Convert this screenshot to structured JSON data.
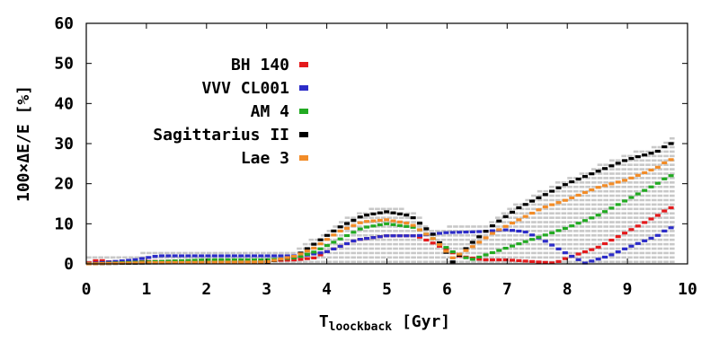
{
  "chart_data": {
    "type": "line",
    "xlabel": "T",
    "xlabel_sub": "loockback",
    "xlabel_unit": " [Gyr]",
    "ylabel": "100×ΔE/E [%]",
    "xlim": [
      0,
      10
    ],
    "ylim": [
      0,
      60
    ],
    "x_ticks": [
      0,
      1,
      2,
      3,
      4,
      5,
      6,
      7,
      8,
      9,
      10
    ],
    "y_ticks": [
      0,
      10,
      20,
      30,
      40,
      50,
      60
    ],
    "grid": false,
    "legend_position": "top-left",
    "background_band_color": "#c8c8c8",
    "series": [
      {
        "name": "BH 140",
        "color": "#e41a1c",
        "points": [
          [
            0.0,
            0
          ],
          [
            0.2,
            1
          ],
          [
            0.5,
            0.2
          ],
          [
            1.0,
            0.6
          ],
          [
            2.0,
            0.8
          ],
          [
            3.0,
            0.8
          ],
          [
            3.5,
            1
          ],
          [
            3.8,
            1.5
          ],
          [
            4.0,
            3
          ],
          [
            4.5,
            6
          ],
          [
            5.0,
            7
          ],
          [
            5.5,
            7
          ],
          [
            5.8,
            5
          ],
          [
            6.2,
            2
          ],
          [
            6.6,
            1
          ],
          [
            7.0,
            1
          ],
          [
            7.5,
            0.5
          ],
          [
            7.8,
            0.2
          ],
          [
            8.0,
            1.5
          ],
          [
            8.5,
            4
          ],
          [
            9.0,
            8
          ],
          [
            9.5,
            12
          ],
          [
            9.7,
            14
          ]
        ]
      },
      {
        "name": "VVV CL001",
        "color": "#2c2cc8",
        "points": [
          [
            0.0,
            0
          ],
          [
            0.8,
            1
          ],
          [
            1.2,
            2
          ],
          [
            2.0,
            2
          ],
          [
            3.0,
            2
          ],
          [
            3.6,
            2
          ],
          [
            4.0,
            3
          ],
          [
            4.5,
            6
          ],
          [
            5.0,
            7
          ],
          [
            5.5,
            7
          ],
          [
            5.8,
            7.5
          ],
          [
            6.0,
            7.8
          ],
          [
            6.5,
            8
          ],
          [
            7.0,
            8.5
          ],
          [
            7.3,
            8
          ],
          [
            7.6,
            6
          ],
          [
            8.0,
            2.5
          ],
          [
            8.3,
            0.2
          ],
          [
            8.7,
            2
          ],
          [
            9.0,
            4
          ],
          [
            9.5,
            7
          ],
          [
            9.7,
            9
          ]
        ]
      },
      {
        "name": "AM 4",
        "color": "#22aa22",
        "points": [
          [
            0.0,
            0
          ],
          [
            1.0,
            0.5
          ],
          [
            2.0,
            1
          ],
          [
            3.0,
            1
          ],
          [
            3.5,
            1.5
          ],
          [
            3.8,
            3
          ],
          [
            4.2,
            6
          ],
          [
            4.6,
            9
          ],
          [
            5.0,
            10
          ],
          [
            5.5,
            9
          ],
          [
            5.8,
            6
          ],
          [
            6.1,
            3
          ],
          [
            6.4,
            1
          ],
          [
            6.8,
            3
          ],
          [
            7.2,
            5
          ],
          [
            7.6,
            7
          ],
          [
            8.0,
            9
          ],
          [
            8.5,
            12
          ],
          [
            9.0,
            16
          ],
          [
            9.5,
            20
          ],
          [
            9.7,
            22
          ]
        ]
      },
      {
        "name": "Sagittarius II",
        "color": "#000000",
        "points": [
          [
            0.0,
            0
          ],
          [
            1.0,
            0.2
          ],
          [
            2.0,
            0.3
          ],
          [
            3.0,
            0.4
          ],
          [
            3.5,
            2
          ],
          [
            3.8,
            5
          ],
          [
            4.2,
            9
          ],
          [
            4.6,
            12
          ],
          [
            5.0,
            13
          ],
          [
            5.4,
            12
          ],
          [
            5.8,
            7
          ],
          [
            6.1,
            0.5
          ],
          [
            6.4,
            5
          ],
          [
            6.8,
            10
          ],
          [
            7.2,
            14
          ],
          [
            7.6,
            17
          ],
          [
            8.0,
            20
          ],
          [
            8.5,
            23
          ],
          [
            9.0,
            26
          ],
          [
            9.5,
            28
          ],
          [
            9.7,
            30
          ]
        ]
      },
      {
        "name": "Lae 3",
        "color": "#f28c28",
        "points": [
          [
            0.0,
            0
          ],
          [
            1.0,
            0.3
          ],
          [
            2.0,
            0.4
          ],
          [
            3.0,
            0.5
          ],
          [
            3.5,
            2
          ],
          [
            3.8,
            4
          ],
          [
            4.2,
            8
          ],
          [
            4.6,
            10.5
          ],
          [
            5.0,
            11
          ],
          [
            5.4,
            10
          ],
          [
            5.8,
            6
          ],
          [
            6.1,
            1.5
          ],
          [
            6.4,
            4
          ],
          [
            6.8,
            8
          ],
          [
            7.2,
            11
          ],
          [
            7.6,
            14
          ],
          [
            8.0,
            16
          ],
          [
            8.5,
            19
          ],
          [
            9.0,
            21
          ],
          [
            9.5,
            24
          ],
          [
            9.7,
            26
          ]
        ]
      }
    ]
  }
}
